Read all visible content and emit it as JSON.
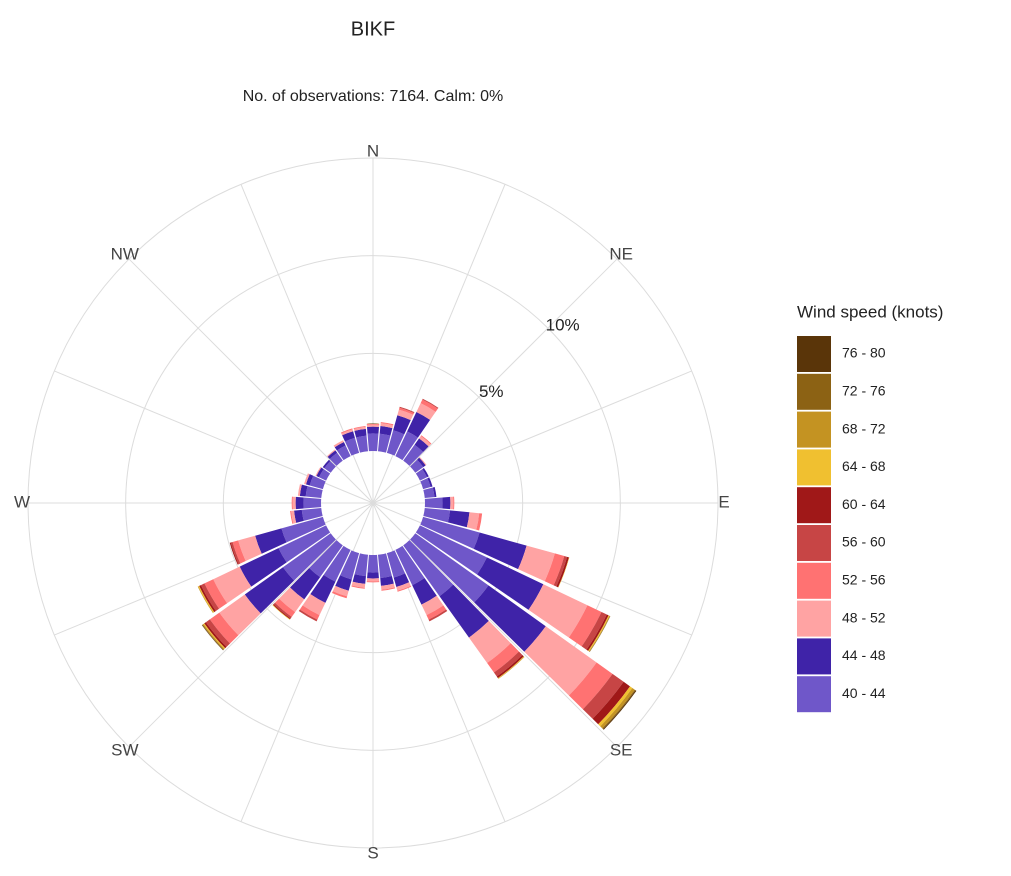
{
  "chart_data": {
    "type": "windrose",
    "title": "BIKF",
    "subtitle": "No. of observations: 7164. Calm: 0%",
    "legend_title": "Wind speed (knots)",
    "x": [
      10,
      20,
      30,
      40,
      50,
      60,
      70,
      80,
      90,
      100,
      110,
      120,
      130,
      140,
      150,
      160,
      170,
      180,
      190,
      200,
      210,
      220,
      230,
      240,
      250,
      260,
      270,
      280,
      290,
      300,
      310,
      320,
      330,
      340,
      350,
      360
    ],
    "xlim": [
      0,
      360
    ],
    "xticks": [
      {
        "value": 0,
        "label": "N"
      },
      {
        "value": 45,
        "label": "NE"
      },
      {
        "value": 90,
        "label": "E"
      },
      {
        "value": 135,
        "label": "SE"
      },
      {
        "value": 180,
        "label": "S"
      },
      {
        "value": 225,
        "label": "SW"
      },
      {
        "value": 270,
        "label": "W"
      },
      {
        "value": 315,
        "label": "NW"
      }
    ],
    "ylim": [
      0,
      15
    ],
    "yticks": [
      {
        "value": 5,
        "label": "5%"
      },
      {
        "value": 10,
        "label": "10%"
      }
    ],
    "series": [
      {
        "name": "40 - 44",
        "color": "#6f57c9",
        "values": [
          0.9,
          1.2,
          1.4,
          1.0,
          0.5,
          0.4,
          0.4,
          0.5,
          0.9,
          1.3,
          3.0,
          3.8,
          4.6,
          3.2,
          2.0,
          1.3,
          1.2,
          0.9,
          1.1,
          1.4,
          1.8,
          2.0,
          3.0,
          2.7,
          2.2,
          1.0,
          0.9,
          0.8,
          0.7,
          0.4,
          0.4,
          0.5,
          0.6,
          0.8,
          0.8,
          0.9
        ]
      },
      {
        "name": "44 - 48",
        "color": "#3f23a8",
        "values": [
          0.4,
          0.8,
          1.1,
          0.4,
          0.15,
          0.1,
          0.1,
          0.1,
          0.4,
          1.0,
          2.5,
          3.2,
          3.6,
          2.6,
          1.1,
          0.5,
          0.4,
          0.3,
          0.4,
          0.6,
          1.2,
          1.4,
          2.4,
          2.2,
          1.4,
          0.4,
          0.4,
          0.3,
          0.2,
          0.15,
          0.1,
          0.15,
          0.2,
          0.35,
          0.35,
          0.35
        ]
      },
      {
        "name": "48 - 52",
        "color": "#ffa3a3",
        "values": [
          0.15,
          0.3,
          0.5,
          0.15,
          0.05,
          0,
          0,
          0,
          0.15,
          0.5,
          1.5,
          2.5,
          3.2,
          1.6,
          0.6,
          0.2,
          0.2,
          0.15,
          0.2,
          0.3,
          0.7,
          0.8,
          1.6,
          1.5,
          0.9,
          0.15,
          0.15,
          0.1,
          0.1,
          0.05,
          0,
          0.05,
          0.1,
          0.1,
          0.1,
          0.1
        ]
      },
      {
        "name": "52 - 56",
        "color": "#ff7272",
        "values": [
          0.05,
          0.1,
          0.2,
          0.05,
          0,
          0,
          0,
          0,
          0.05,
          0.15,
          0.5,
          0.8,
          1.0,
          0.6,
          0.25,
          0.05,
          0.05,
          0.05,
          0.05,
          0.1,
          0.25,
          0.3,
          0.6,
          0.5,
          0.3,
          0.05,
          0.05,
          0,
          0,
          0,
          0,
          0,
          0,
          0.05,
          0.05,
          0.05
        ]
      },
      {
        "name": "56 - 60",
        "color": "#c74545",
        "values": [
          0,
          0.05,
          0.05,
          0,
          0,
          0,
          0,
          0,
          0,
          0,
          0.15,
          0.3,
          0.7,
          0.25,
          0.1,
          0,
          0,
          0,
          0,
          0,
          0.1,
          0.1,
          0.25,
          0.2,
          0.1,
          0,
          0,
          0,
          0,
          0,
          0,
          0,
          0,
          0,
          0,
          0
        ]
      },
      {
        "name": "60 - 64",
        "color": "#a01818",
        "values": [
          0,
          0,
          0,
          0,
          0,
          0,
          0,
          0,
          0,
          0,
          0.1,
          0.1,
          0.4,
          0.1,
          0,
          0,
          0,
          0,
          0,
          0,
          0,
          0.05,
          0.1,
          0.1,
          0.05,
          0,
          0,
          0,
          0,
          0,
          0,
          0,
          0,
          0,
          0,
          0
        ]
      },
      {
        "name": "64 - 68",
        "color": "#f0c030",
        "values": [
          0,
          0,
          0,
          0,
          0,
          0,
          0,
          0,
          0,
          0,
          0.02,
          0.05,
          0.15,
          0.03,
          0,
          0,
          0,
          0,
          0,
          0,
          0,
          0.03,
          0.05,
          0.05,
          0,
          0,
          0,
          0,
          0,
          0,
          0,
          0,
          0,
          0,
          0,
          0
        ]
      },
      {
        "name": "68 - 72",
        "color": "#c49322",
        "values": [
          0,
          0,
          0,
          0,
          0,
          0,
          0,
          0,
          0,
          0,
          0,
          0.03,
          0.15,
          0.02,
          0,
          0,
          0,
          0,
          0,
          0,
          0,
          0,
          0.05,
          0.03,
          0,
          0,
          0,
          0,
          0,
          0,
          0,
          0,
          0,
          0,
          0,
          0
        ]
      },
      {
        "name": "72 - 76",
        "color": "#8c6214",
        "values": [
          0,
          0,
          0,
          0,
          0,
          0,
          0,
          0,
          0,
          0,
          0,
          0.02,
          0.05,
          0,
          0,
          0,
          0,
          0,
          0,
          0,
          0,
          0,
          0.03,
          0,
          0,
          0,
          0,
          0,
          0,
          0,
          0,
          0,
          0,
          0,
          0,
          0
        ]
      },
      {
        "name": "76 - 80",
        "color": "#5a3509",
        "values": [
          0,
          0,
          0,
          0,
          0,
          0,
          0,
          0,
          0,
          0,
          0,
          0,
          0.05,
          0,
          0,
          0,
          0,
          0,
          0,
          0,
          0,
          0,
          0.02,
          0,
          0,
          0,
          0,
          0,
          0,
          0,
          0,
          0,
          0,
          0,
          0,
          0
        ]
      }
    ]
  }
}
